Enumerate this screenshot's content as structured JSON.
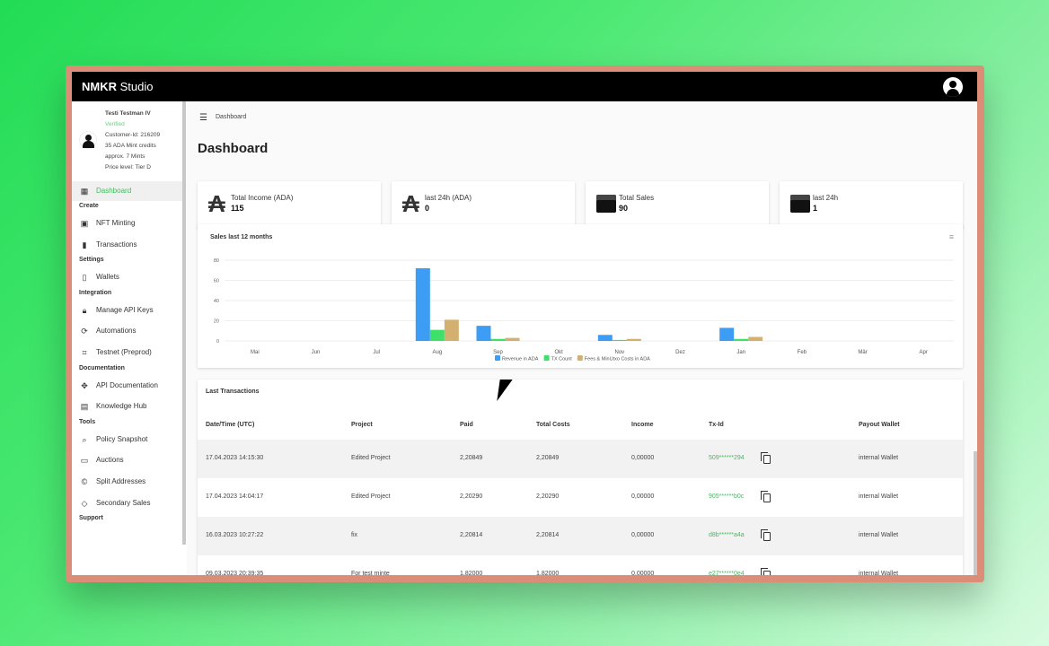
{
  "app": {
    "logo": "NMKR",
    "logo_suffix": "Studio"
  },
  "user": {
    "name": "Testi Testman IV",
    "status": "Verified",
    "customer_id": "Customer-Id: 216209",
    "mint_credits": "35 ADA Mint credits",
    "approx": "approx. 7 Mints",
    "price_level": "Price level: Tier D"
  },
  "sidebar": {
    "dashboard": "Dashboard",
    "sections": [
      {
        "title": "Create",
        "items": [
          {
            "label": "NFT Minting",
            "icon": "image-icon"
          },
          {
            "label": "Transactions",
            "icon": "bar-chart-icon"
          }
        ]
      },
      {
        "title": "Settings",
        "items": [
          {
            "label": "Wallets",
            "icon": "document-icon"
          }
        ]
      },
      {
        "title": "Integration",
        "items": [
          {
            "label": "Manage API Keys",
            "icon": "lock-icon"
          },
          {
            "label": "Automations",
            "icon": "sync-icon"
          },
          {
            "label": "Testnet (Preprod)",
            "icon": "code-icon"
          }
        ]
      },
      {
        "title": "Documentation",
        "items": [
          {
            "label": "API Documentation",
            "icon": "hub-icon"
          },
          {
            "label": "Knowledge Hub",
            "icon": "book-icon"
          }
        ]
      },
      {
        "title": "Tools",
        "items": [
          {
            "label": "Policy Snapshot",
            "icon": "search-doc-icon"
          },
          {
            "label": "Auctions",
            "icon": "wallet-icon"
          },
          {
            "label": "Split Addresses",
            "icon": "copyright-icon"
          },
          {
            "label": "Secondary Sales",
            "icon": "tag-icon"
          }
        ]
      },
      {
        "title": "Support",
        "items": []
      }
    ]
  },
  "breadcrumb": "Dashboard",
  "page_title": "Dashboard",
  "stats": [
    {
      "label": "Total Income (ADA)",
      "value": "115",
      "icon": "ada-icon"
    },
    {
      "label": "last 24h (ADA)",
      "value": "0",
      "icon": "ada-icon"
    },
    {
      "label": "Total Sales",
      "value": "90",
      "icon": "cash-register-icon"
    },
    {
      "label": "last 24h",
      "value": "1",
      "icon": "cash-register-icon"
    }
  ],
  "chart_data": {
    "type": "bar",
    "title": "Sales last 12 months",
    "categories": [
      "Mai",
      "Jun",
      "Jul",
      "Aug",
      "Sep",
      "Okt",
      "Nov",
      "Dez",
      "Jan",
      "Feb",
      "Mär",
      "Apr"
    ],
    "ylim": [
      0,
      80
    ],
    "yticks": [
      0,
      20,
      40,
      60,
      80
    ],
    "grid": true,
    "legend": "bottom",
    "series": [
      {
        "name": "Revenue in ADA",
        "color": "#3d9df5",
        "values": [
          0,
          0,
          0,
          72,
          15,
          0,
          6,
          0,
          13,
          0,
          0,
          0
        ]
      },
      {
        "name": "TX Count",
        "color": "#3ee06a",
        "values": [
          0,
          0,
          0,
          11,
          2,
          0,
          1,
          0,
          2,
          0,
          0,
          0
        ]
      },
      {
        "name": "Fees & MinUtxo Costs in ADA",
        "color": "#d4b070",
        "values": [
          0,
          0,
          0,
          21,
          3,
          0,
          2,
          0,
          4,
          0,
          0,
          0
        ]
      }
    ]
  },
  "transactions": {
    "title": "Last Transactions",
    "columns": [
      "Date/Time (UTC)",
      "Project",
      "Paid",
      "Total Costs",
      "Income",
      "Tx-Id",
      "Payout Wallet"
    ],
    "rows": [
      [
        "17.04.2023 14:15:30",
        "Edited Project",
        "2,20849",
        "2,20849",
        "0,00000",
        "509******294",
        "internal Wallet"
      ],
      [
        "17.04.2023 14:04:17",
        "Edited Project",
        "2,20290",
        "2,20290",
        "0,00000",
        "905******b0c",
        "internal Wallet"
      ],
      [
        "16.03.2023 10:27:22",
        "fix",
        "2,20814",
        "2,20814",
        "0,00000",
        "d8b******a4a",
        "internal Wallet"
      ],
      [
        "09.03.2023 20:39:35",
        "For test minte",
        "1,82000",
        "1,82000",
        "0,00000",
        "e27******0e4",
        "internal Wallet"
      ]
    ]
  }
}
